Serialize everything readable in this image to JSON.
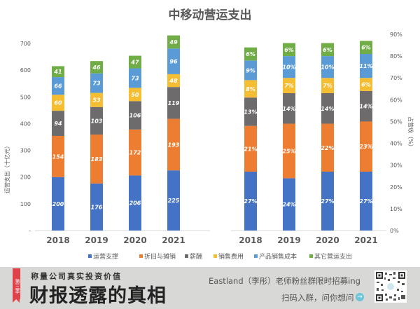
{
  "chart_data": [
    {
      "type": "bar",
      "stacked": true,
      "title": "中移动营运支出",
      "ylabel": "运营支出（十亿元）",
      "xlabel": "",
      "categories": [
        "2018",
        "2019",
        "2020",
        "2021"
      ],
      "ylim": [
        0,
        700
      ],
      "yticks": [
        "-",
        "100",
        "200",
        "300",
        "400",
        "500",
        "600",
        "700"
      ],
      "grid": false,
      "series": [
        {
          "name": "运营支撑",
          "color": "#4472c4",
          "values": [
            200,
            176,
            206,
            225
          ],
          "labels": [
            "200",
            "176",
            "206",
            "225"
          ]
        },
        {
          "name": "折旧与摊销",
          "color": "#ed7d31",
          "values": [
            154,
            183,
            172,
            193
          ],
          "labels": [
            "154",
            "183",
            "172",
            "193"
          ]
        },
        {
          "name": "薪酬",
          "color": "#6d6b6b",
          "values": [
            94,
            103,
            106,
            119
          ],
          "labels": [
            "94",
            "103",
            "106",
            "119"
          ]
        },
        {
          "name": "销售费用",
          "color": "#f5bd32",
          "values": [
            60,
            53,
            50,
            48
          ],
          "labels": [
            "60",
            "53",
            "50",
            "48"
          ]
        },
        {
          "name": "产品销售成本",
          "color": "#5b9bd5",
          "values": [
            66,
            73,
            73,
            96
          ],
          "labels": [
            "66",
            "73",
            "73",
            "96"
          ]
        },
        {
          "name": "其它营运支出",
          "color": "#70ad47",
          "values": [
            41,
            46,
            47,
            49
          ],
          "labels": [
            "41",
            "46",
            "47",
            "49"
          ]
        }
      ]
    },
    {
      "type": "bar",
      "stacked": true,
      "ylabel": "占营收（%）",
      "categories": [
        "2018",
        "2019",
        "2020",
        "2021"
      ],
      "ylim": [
        0,
        90
      ],
      "yticks": [
        "0%",
        "10%",
        "20%",
        "30%",
        "40%",
        "50%",
        "60%",
        "70%",
        "80%",
        "90%"
      ],
      "axis_side": "right",
      "grid": false,
      "series": [
        {
          "name": "运营支撑",
          "color": "#4472c4",
          "values": [
            27,
            24,
            27,
            27
          ],
          "labels": [
            "27%",
            "24%",
            "27%",
            "27%"
          ]
        },
        {
          "name": "折旧与摊销",
          "color": "#ed7d31",
          "values": [
            21,
            25,
            22,
            23
          ],
          "labels": [
            "21%",
            "25%",
            "22%",
            "23%"
          ]
        },
        {
          "name": "薪酬",
          "color": "#6d6b6b",
          "values": [
            13,
            14,
            14,
            14
          ],
          "labels": [
            "13%",
            "14%",
            "14%",
            "14%"
          ]
        },
        {
          "name": "销售费用",
          "color": "#f5bd32",
          "values": [
            8,
            7,
            7,
            6
          ],
          "labels": [
            "8%",
            "7%",
            "7%",
            "6%"
          ]
        },
        {
          "name": "产品销售成本",
          "color": "#5b9bd5",
          "values": [
            9,
            10,
            10,
            11
          ],
          "labels": [
            "9%",
            "10%",
            "10%",
            "11%"
          ]
        },
        {
          "name": "其它营运支出",
          "color": "#70ad47",
          "values": [
            6,
            6,
            6,
            6
          ],
          "labels": [
            "6%",
            "6%",
            "6%",
            "6%"
          ]
        }
      ]
    }
  ],
  "legend": {
    "position": "bottom",
    "items": [
      "运营支撑",
      "折旧与摊销",
      "薪酬",
      "销售费用",
      "产品销售成本",
      "其它营运支出"
    ]
  },
  "banner": {
    "ribbon": "第三季",
    "subtitle": "称量公司真实投资价值",
    "title": "财报透露的真相",
    "promo_line1": "Eastland（李彤）老师粉丝群限时招募ing",
    "promo_line2": "扫码入群，问你想问",
    "arrow_icon": "→",
    "qr_icon": "qr-code"
  }
}
